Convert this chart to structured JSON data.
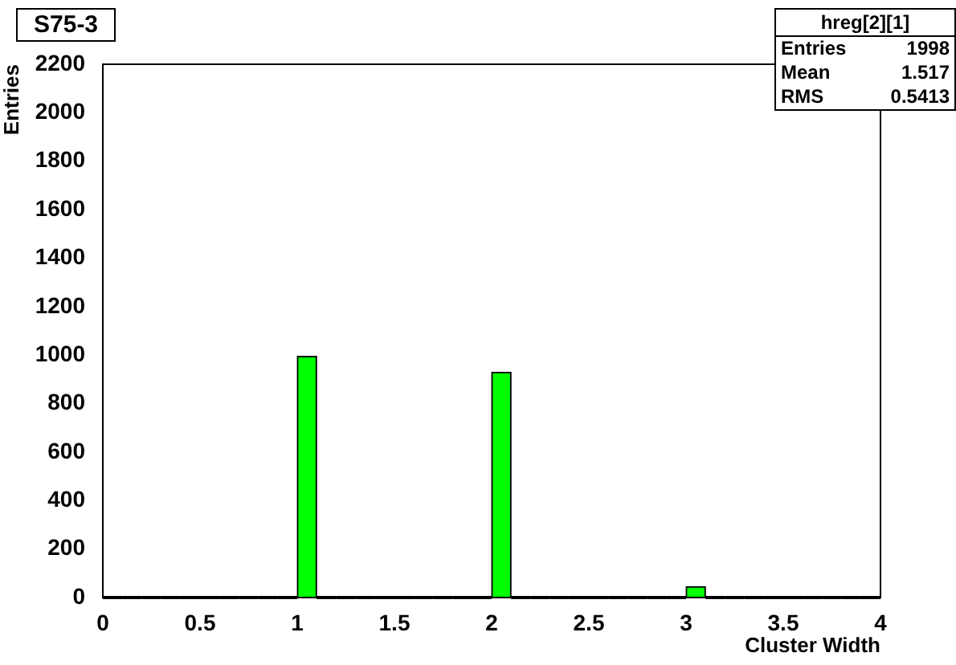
{
  "chart_data": {
    "type": "histogram",
    "title": "S75-3",
    "xlabel": "Cluster Width",
    "ylabel": "Entries",
    "bins": [
      0,
      0.1,
      0.2,
      0.3,
      0.4,
      0.5,
      0.6,
      0.7,
      0.8,
      0.9,
      1,
      1.1,
      1.2,
      1.3,
      1.4,
      1.5,
      1.6,
      1.7,
      1.8,
      1.9,
      2,
      2.1,
      2.2,
      2.3,
      2.4,
      2.5,
      2.6,
      2.7,
      2.8,
      2.9,
      3,
      3.1,
      3.2,
      3.3,
      3.4,
      3.5,
      3.6,
      3.7,
      3.8,
      3.9,
      4
    ],
    "values": [
      0,
      0,
      0,
      0,
      0,
      0,
      0,
      0,
      0,
      0,
      995,
      0,
      0,
      0,
      0,
      0,
      0,
      0,
      0,
      0,
      930,
      0,
      0,
      0,
      0,
      0,
      0,
      0,
      0,
      0,
      45,
      0,
      0,
      0,
      0,
      0,
      0,
      0,
      0,
      0
    ],
    "color": "#00ff00",
    "xlim": [
      0,
      4
    ],
    "xticks": [
      0,
      0.5,
      1,
      1.5,
      2,
      2.5,
      3,
      3.5,
      4
    ],
    "ylim": [
      0,
      2200
    ],
    "yticks": [
      0,
      200,
      400,
      600,
      800,
      1000,
      1200,
      1400,
      1600,
      1800,
      2000,
      2200
    ],
    "grid": false,
    "legend": false,
    "annotations": [
      "hreg[2][1]",
      "Entries 1998",
      "Mean 1.517",
      "RMS 0.5413"
    ]
  }
}
